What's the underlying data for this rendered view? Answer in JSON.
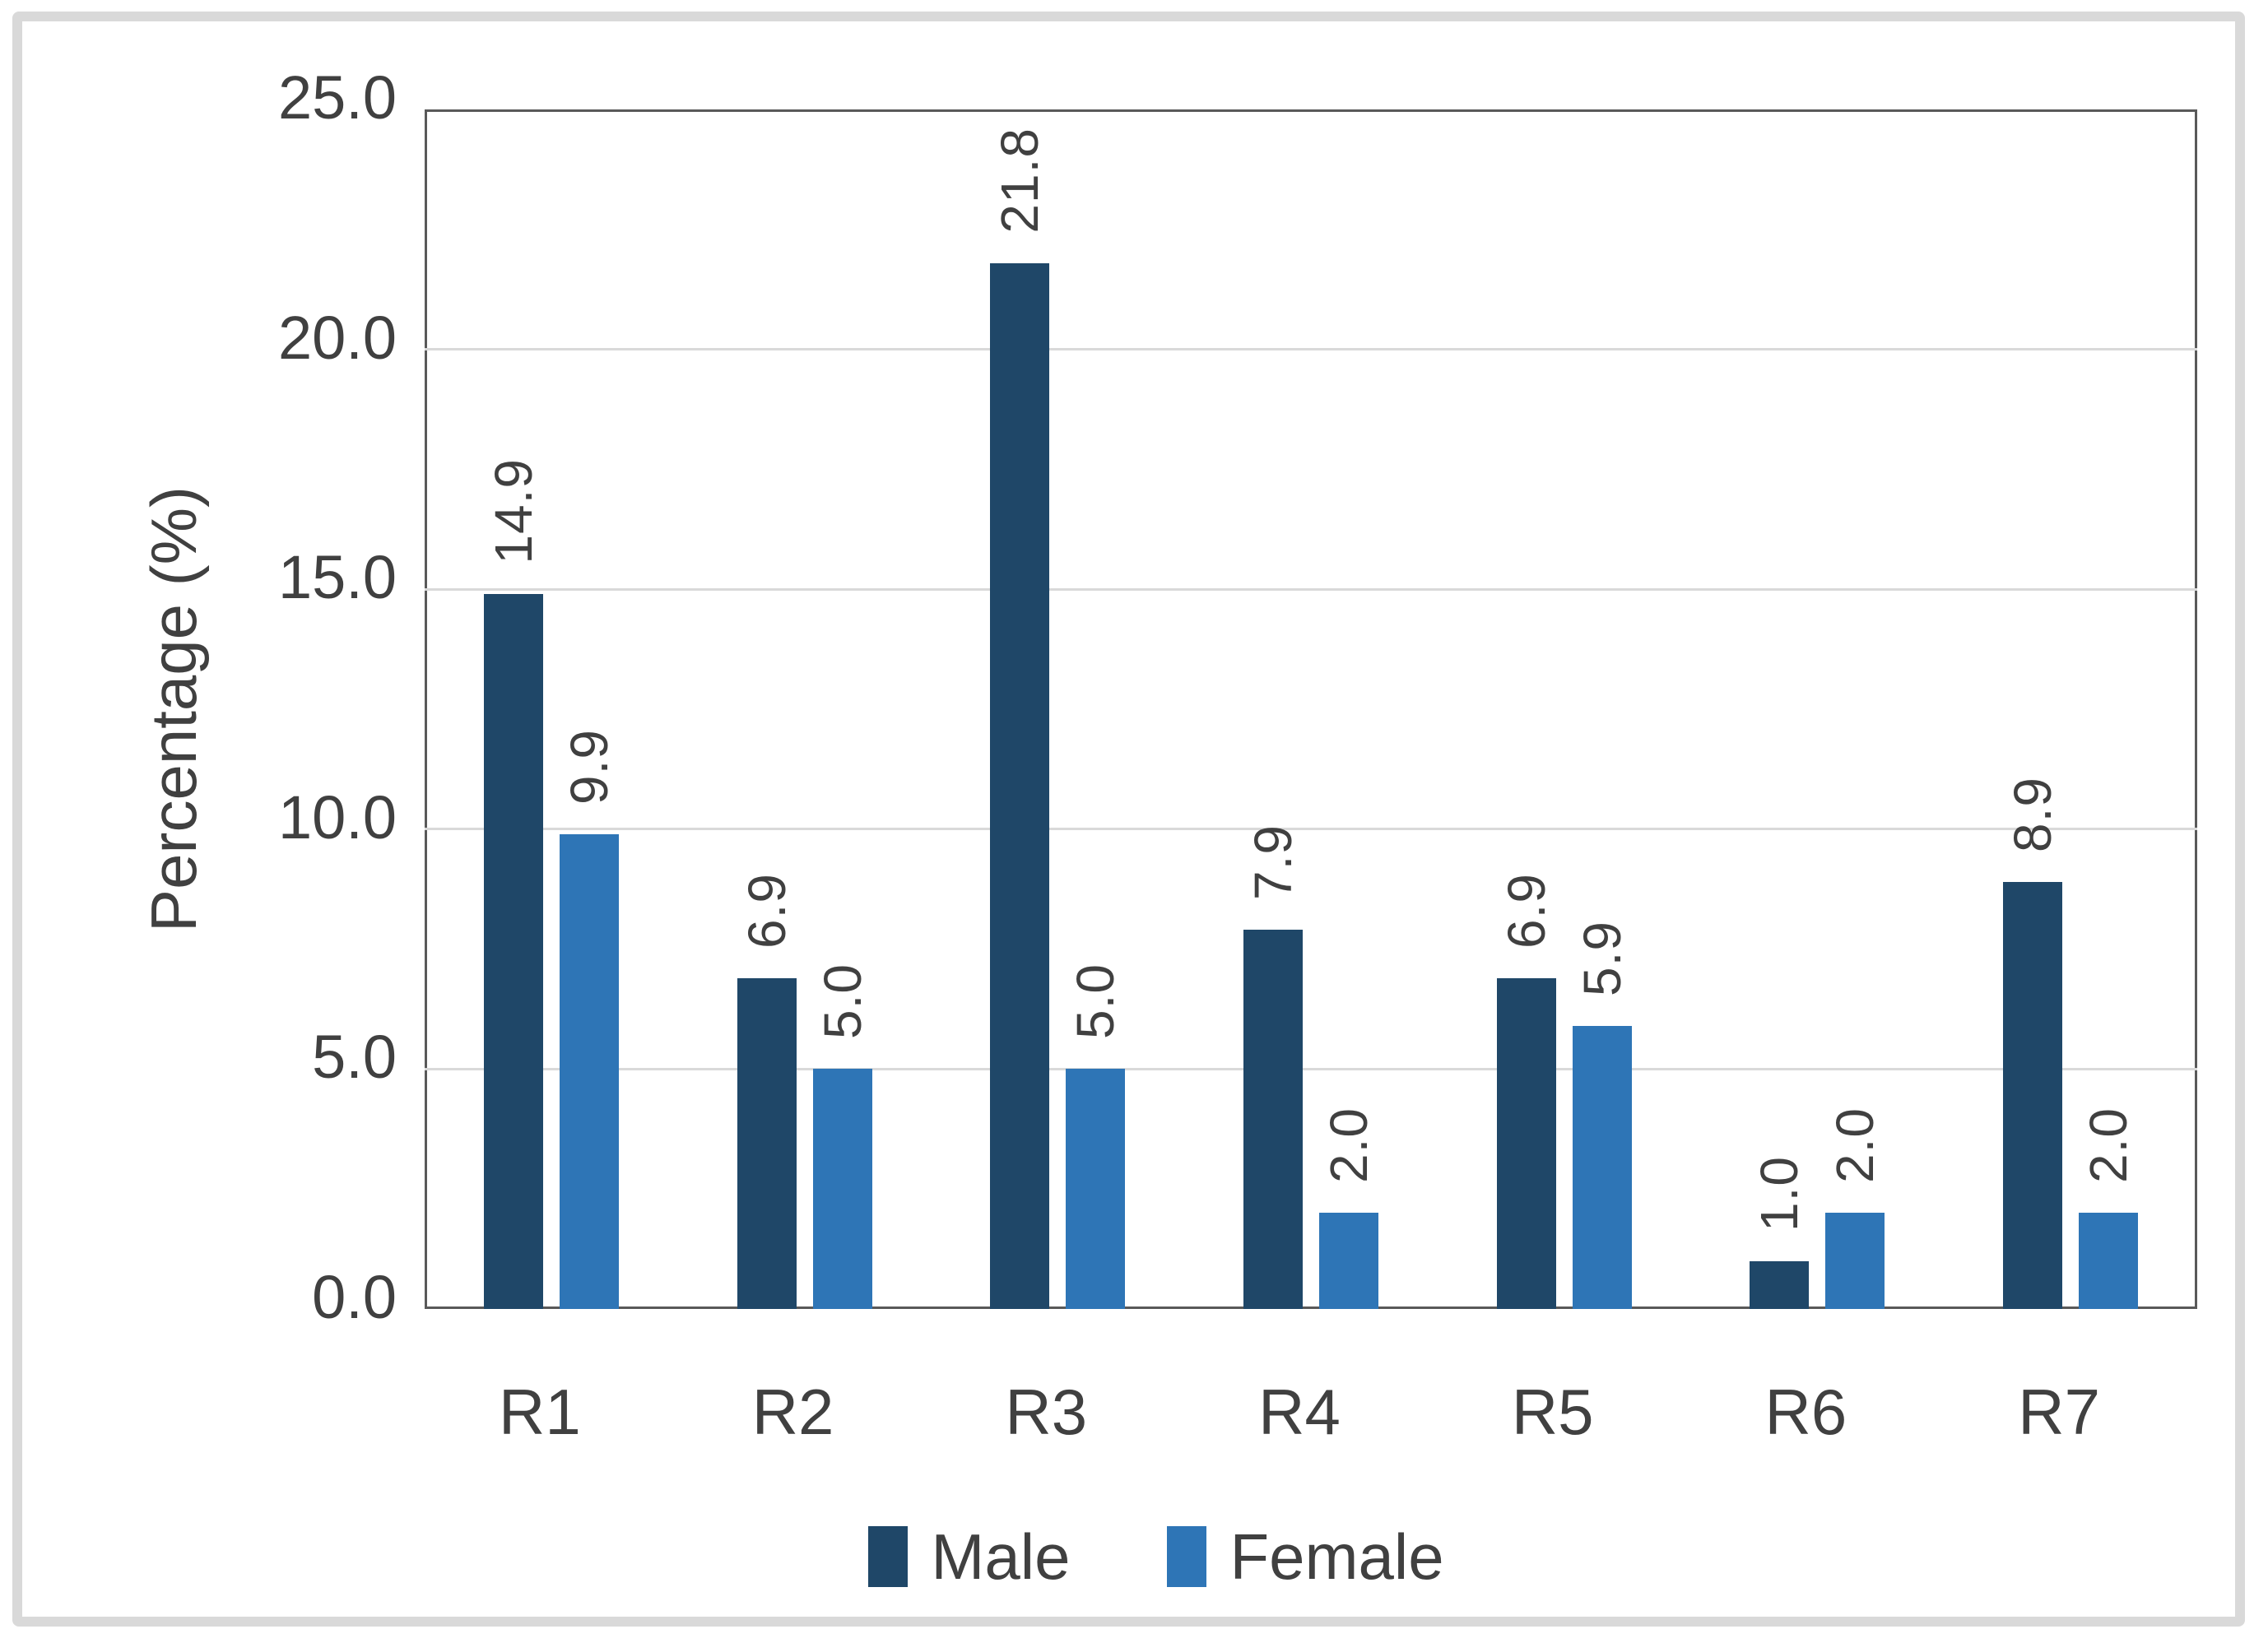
{
  "chart_data": {
    "type": "bar",
    "title": "",
    "categories": [
      "R1",
      "R2",
      "R3",
      "R4",
      "R5",
      "R6",
      "R7"
    ],
    "series": [
      {
        "name": "Male",
        "color": "#1f4768",
        "values": [
          14.9,
          6.9,
          21.8,
          7.9,
          6.9,
          1.0,
          8.9
        ],
        "labels": [
          "14.9",
          "6.9",
          "21.8",
          "7.9",
          "6.9",
          "1.0",
          "8.9"
        ]
      },
      {
        "name": "Female",
        "color": "#2e75b6",
        "values": [
          9.9,
          5.0,
          5.0,
          2.0,
          5.9,
          2.0,
          2.0
        ],
        "labels": [
          "9.9",
          "5.0",
          "5.0",
          "2.0",
          "5.9",
          "2.0",
          "2.0"
        ]
      }
    ],
    "xlabel": "",
    "ylabel": "Percentage (%)",
    "ylim": [
      0,
      25
    ],
    "yticks": {
      "values": [
        0,
        5,
        10,
        15,
        20,
        25
      ],
      "labels": [
        "0.0",
        "5.0",
        "10.0",
        "15.0",
        "20.0",
        "25.0"
      ]
    },
    "grid": true,
    "gridline_values": [
      5,
      10,
      15,
      20
    ],
    "legend_position": "bottom",
    "data_label_rotation": -90,
    "colors": {
      "grid": "#d9d9d9",
      "plot_border": "#595959",
      "text": "#404040",
      "frame": "#d9d9d9",
      "background": "#ffffff"
    }
  }
}
